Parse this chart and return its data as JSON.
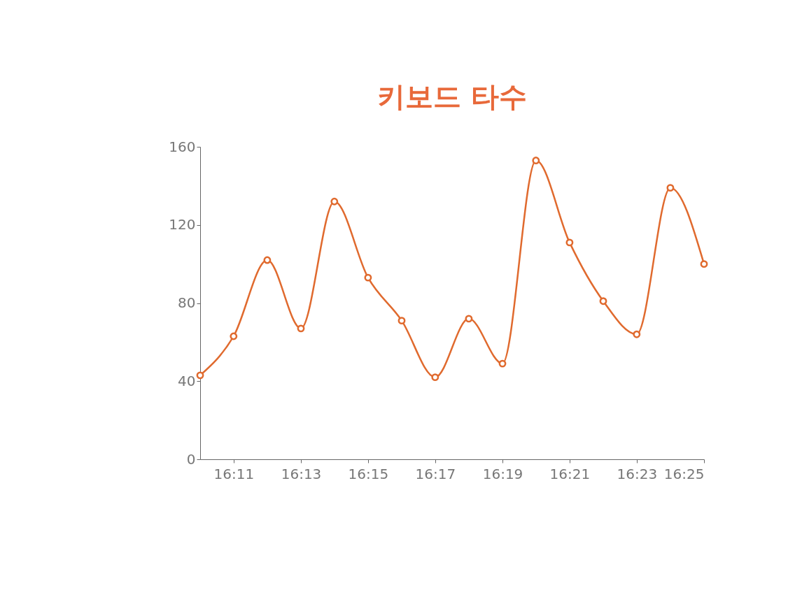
{
  "chart_data": {
    "type": "line",
    "title": "키보드 타수",
    "x": [
      16.1667,
      16.1833,
      16.2,
      16.2167,
      16.2333,
      16.25,
      16.2667,
      16.2833,
      16.3,
      16.3167,
      16.3333,
      16.35,
      16.3667,
      16.3833,
      16.4,
      16.4167
    ],
    "series": [
      {
        "color": "#e06a2e",
        "values": [
          43,
          63,
          102,
          67,
          132,
          93,
          71,
          42,
          72,
          49,
          153,
          111,
          81,
          64,
          139,
          100
        ]
      }
    ],
    "xlim": [
      16.1667,
      16.4167
    ],
    "xticks": [
      {
        "value": 16.1833,
        "label": "16:11"
      },
      {
        "value": 16.2167,
        "label": "16:13"
      },
      {
        "value": 16.25,
        "label": "16:15"
      },
      {
        "value": 16.2833,
        "label": "16:17"
      },
      {
        "value": 16.3167,
        "label": "16:19"
      },
      {
        "value": 16.35,
        "label": "16:21"
      },
      {
        "value": 16.3833,
        "label": "16:23"
      },
      {
        "value": 16.4167,
        "label": "16:25"
      }
    ],
    "ylim": [
      0,
      160
    ],
    "yticks": [
      0,
      40,
      80,
      120,
      160
    ],
    "grid": false,
    "marker": "circle",
    "line_style": "solid"
  }
}
